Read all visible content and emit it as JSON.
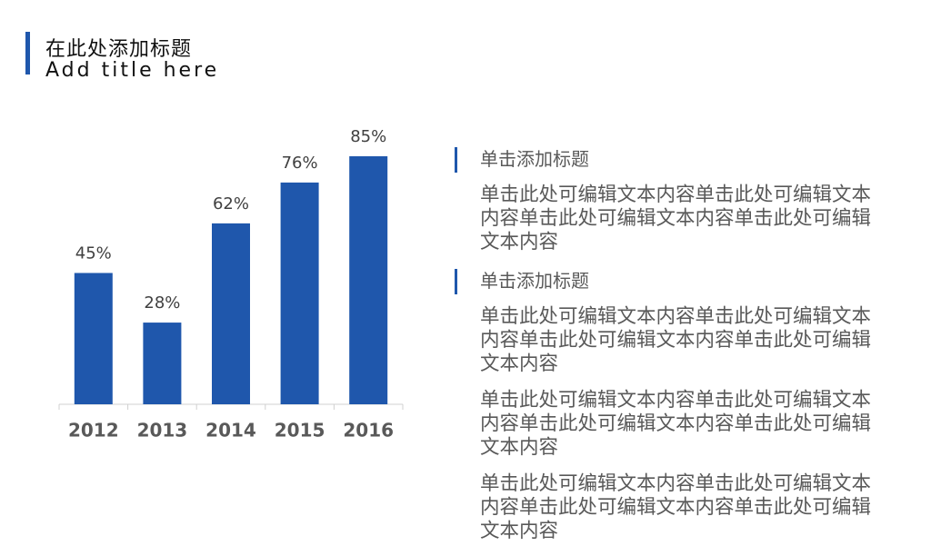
{
  "header": {
    "title": "在此处添加标题",
    "subtitle": "Add title here"
  },
  "chart_data": {
    "type": "bar",
    "categories": [
      "2012",
      "2013",
      "2014",
      "2015",
      "2016"
    ],
    "values": [
      45,
      28,
      62,
      76,
      85
    ],
    "value_labels": [
      "45%",
      "28%",
      "62%",
      "76%",
      "85%"
    ],
    "color": "#1f57ac"
  },
  "blocks": [
    {
      "heading": "单击添加标题",
      "paragraphs": [
        "单击此处可编辑文本内容单击此处可编辑文本内容单击此处可编辑文本内容单击此处可编辑文本内容"
      ]
    },
    {
      "heading": "单击添加标题",
      "paragraphs": [
        "单击此处可编辑文本内容单击此处可编辑文本内容单击此处可编辑文本内容单击此处可编辑文本内容",
        "单击此处可编辑文本内容单击此处可编辑文本内容单击此处可编辑文本内容单击此处可编辑文本内容",
        "单击此处可编辑文本内容单击此处可编辑文本内容单击此处可编辑文本内容单击此处可编辑文本内容"
      ]
    }
  ]
}
